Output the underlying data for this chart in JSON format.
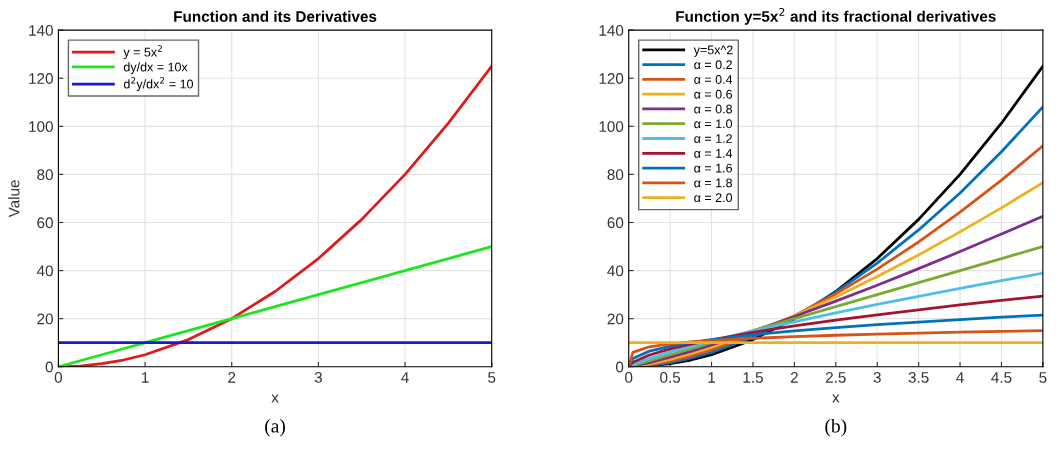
{
  "chart_data": [
    {
      "type": "line",
      "title": "Function and its Derivatives",
      "xlabel": "x",
      "ylabel": "Value",
      "x": [
        0,
        0.05,
        0.25,
        0.5,
        0.75,
        1,
        1.5,
        2,
        2.5,
        3,
        3.5,
        4,
        4.5,
        5
      ],
      "series": [
        {
          "name": "y = 5x$^{2}$",
          "color": "#e01a1a",
          "values": [
            0,
            0.0,
            0.3,
            1.3,
            2.8,
            5,
            11.3,
            20,
            31.3,
            45,
            61.3,
            80,
            101.3,
            125
          ]
        },
        {
          "name": "dy/dx = 10x",
          "color": "#1ee61e",
          "values": [
            0,
            0.5,
            2.5,
            5,
            7.5,
            10,
            15,
            20,
            25,
            30,
            35,
            40,
            45,
            50
          ]
        },
        {
          "name": "d$^{2}$y/dx$^{2}$ = 10",
          "color": "#1a1ad0",
          "values": [
            10,
            10,
            10,
            10,
            10,
            10,
            10,
            10,
            10,
            10,
            10,
            10,
            10,
            10
          ]
        }
      ],
      "xlim": [
        0,
        5
      ],
      "xticks": [
        0,
        1,
        2,
        3,
        4,
        5
      ],
      "ylim": [
        0,
        140
      ],
      "yticks": [
        0,
        20,
        40,
        60,
        80,
        100,
        120,
        140
      ],
      "grid": true,
      "legend": "top left",
      "annotations": [
        "(a)"
      ]
    },
    {
      "type": "line",
      "title": "Function y=5x$^{2}$ and its fractional derivatives",
      "xlabel": "x",
      "x": [
        0,
        0.05,
        0.25,
        0.5,
        0.75,
        1,
        1.5,
        2,
        2.5,
        3,
        3.5,
        4,
        4.5,
        5
      ],
      "series": [
        {
          "name": "y=5x^2",
          "color": "#000000",
          "values": [
            0,
            0.0,
            0.3,
            1.3,
            2.8,
            5,
            11.3,
            20,
            31.3,
            45,
            61.3,
            80,
            101.3,
            125
          ]
        },
        {
          "name": "α = 0.2",
          "color": "#0072bd",
          "values": [
            0,
            0.0,
            0.5,
            1.7,
            3.6,
            6.0,
            12.4,
            20.8,
            31.0,
            43.1,
            56.9,
            72.3,
            89.4,
            108.1
          ]
        },
        {
          "name": "α = 0.4",
          "color": "#d95319",
          "values": [
            0,
            0.1,
            0.8,
            2.3,
            4.4,
            7.0,
            13.4,
            21.2,
            30.3,
            40.6,
            51.9,
            64.3,
            77.6,
            91.9
          ]
        },
        {
          "name": "α = 0.6",
          "color": "#edb120",
          "values": [
            0,
            0.1,
            1.2,
            3.1,
            5.4,
            8.1,
            14.2,
            21.2,
            29.0,
            37.5,
            46.5,
            56.1,
            66.1,
            76.6
          ]
        },
        {
          "name": "α = 0.8",
          "color": "#7e2f8e",
          "values": [
            0,
            0.2,
            1.7,
            4.0,
            6.4,
            9.1,
            14.8,
            20.9,
            27.3,
            33.9,
            40.8,
            47.9,
            55.2,
            62.6
          ]
        },
        {
          "name": "α = 1.0",
          "color": "#77ac30",
          "values": [
            0,
            0.5,
            2.5,
            5,
            7.5,
            10,
            15,
            20,
            25,
            30,
            35,
            40,
            45,
            50
          ]
        },
        {
          "name": "α = 1.2",
          "color": "#4dbeee",
          "values": [
            0,
            1.0,
            3.5,
            6.2,
            8.5,
            10.7,
            14.9,
            18.7,
            22.4,
            25.9,
            29.3,
            32.6,
            35.8,
            38.9
          ]
        },
        {
          "name": "α = 1.4",
          "color": "#a2142f",
          "values": [
            0,
            1.9,
            4.9,
            7.4,
            9.4,
            11.2,
            14.3,
            17.0,
            19.4,
            21.6,
            23.7,
            25.7,
            27.6,
            29.4
          ]
        },
        {
          "name": "α = 1.6",
          "color": "#0072bd",
          "values": [
            0,
            3.4,
            6.5,
            8.5,
            10.1,
            11.3,
            13.3,
            14.9,
            16.3,
            17.5,
            18.6,
            19.6,
            20.6,
            21.5
          ]
        },
        {
          "name": "α = 1.8",
          "color": "#d95319",
          "values": [
            0,
            6.0,
            8.3,
            9.5,
            10.3,
            10.9,
            11.8,
            12.5,
            13.1,
            13.6,
            14.0,
            14.4,
            14.7,
            15.0
          ]
        },
        {
          "name": "α = 2.0",
          "color": "#edb120",
          "values": [
            10,
            10,
            10,
            10,
            10,
            10,
            10,
            10,
            10,
            10,
            10,
            10,
            10,
            10
          ]
        }
      ],
      "xlim": [
        0,
        5
      ],
      "xticks": [
        0,
        0.5,
        1,
        1.5,
        2,
        2.5,
        3,
        3.5,
        4,
        4.5,
        5
      ],
      "ylim": [
        0,
        140
      ],
      "yticks": [
        0,
        20,
        40,
        60,
        80,
        100,
        120,
        140
      ],
      "grid": true,
      "legend": "top left",
      "annotations": [
        "(b)"
      ]
    }
  ]
}
